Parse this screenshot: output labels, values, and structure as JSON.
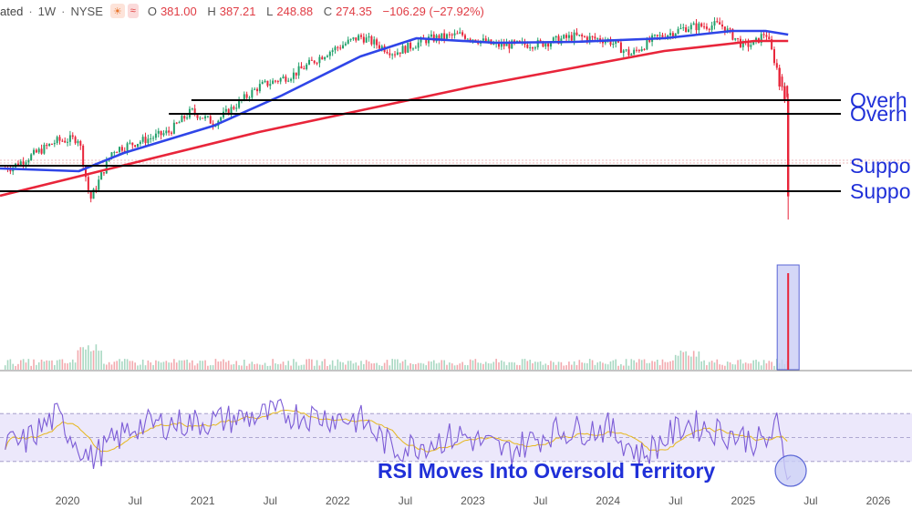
{
  "header": {
    "symbol_fragment": "ated",
    "interval": "1W",
    "exchange": "NYSE",
    "sun_icon": "sun-icon",
    "wave_icon": "approx-icon",
    "ohlc": {
      "open_label": "O",
      "open": "381.00",
      "high_label": "H",
      "high": "387.21",
      "low_label": "L",
      "low": "248.88",
      "close_label": "C",
      "close": "274.35",
      "change": "−106.29 (−27.92%)"
    }
  },
  "colors": {
    "sma50": "#2f45e8",
    "sma200": "#e8253a",
    "up": "#22a06b",
    "down": "#e8253a",
    "rsi": "#7c5cd6",
    "rsi_ma": "#e6b71e",
    "level": "#000000",
    "annotation": "#2030d8",
    "highlight": "#c9cdf5"
  },
  "annotations": {
    "overhead_1": "Overh",
    "overhead_2": "Overh",
    "support_1": "Suppo",
    "support_2": "Suppo",
    "rsi_note": "RSI Moves Into Oversold Territory"
  },
  "chart_data": {
    "type": "candlestick",
    "xlim": [
      "2019-07",
      "2026-04"
    ],
    "x_ticks": [
      "2020",
      "Jul",
      "2021",
      "Jul",
      "2022",
      "Jul",
      "2023",
      "Jul",
      "2024",
      "Jul",
      "2025",
      "Jul",
      "2026"
    ],
    "ylim": [
      200,
      470
    ],
    "price_anchors": [
      {
        "x": "2019-08",
        "y": 306
      },
      {
        "x": "2019-12",
        "y": 335
      },
      {
        "x": "2020-02",
        "y": 338
      },
      {
        "x": "2020-03",
        "y": 270
      },
      {
        "x": "2020-05",
        "y": 325
      },
      {
        "x": "2020-10",
        "y": 345
      },
      {
        "x": "2020-12",
        "y": 368
      },
      {
        "x": "2021-02",
        "y": 355
      },
      {
        "x": "2021-06",
        "y": 395
      },
      {
        "x": "2021-09",
        "y": 408
      },
      {
        "x": "2021-12",
        "y": 432
      },
      {
        "x": "2022-03",
        "y": 450
      },
      {
        "x": "2022-06",
        "y": 432
      },
      {
        "x": "2022-09",
        "y": 447
      },
      {
        "x": "2022-12",
        "y": 452
      },
      {
        "x": "2023-03",
        "y": 440
      },
      {
        "x": "2023-07",
        "y": 442
      },
      {
        "x": "2023-10",
        "y": 450
      },
      {
        "x": "2024-01",
        "y": 446
      },
      {
        "x": "2024-03",
        "y": 430
      },
      {
        "x": "2024-05",
        "y": 447
      },
      {
        "x": "2024-08",
        "y": 460
      },
      {
        "x": "2024-11",
        "y": 463
      },
      {
        "x": "2025-01",
        "y": 440
      },
      {
        "x": "2025-02",
        "y": 442
      },
      {
        "x": "2025-03",
        "y": 455
      },
      {
        "x": "2025-04",
        "y": 415
      },
      {
        "x": "2025-05",
        "y": 381
      },
      {
        "x": "2025-05-15",
        "y": 274.35
      }
    ],
    "series": [
      {
        "name": "",
        "kind": "sma50",
        "values": [
          {
            "x": "2019-07",
            "y": 305
          },
          {
            "x": "2020-02",
            "y": 302
          },
          {
            "x": "2020-06",
            "y": 322
          },
          {
            "x": "2021-02",
            "y": 352
          },
          {
            "x": "2021-08",
            "y": 385
          },
          {
            "x": "2022-03",
            "y": 428
          },
          {
            "x": "2022-08",
            "y": 448
          },
          {
            "x": "2023-03",
            "y": 443
          },
          {
            "x": "2023-10",
            "y": 444
          },
          {
            "x": "2024-06",
            "y": 448
          },
          {
            "x": "2024-12",
            "y": 456
          },
          {
            "x": "2025-03",
            "y": 456
          },
          {
            "x": "2025-05",
            "y": 452
          }
        ]
      },
      {
        "name": "",
        "kind": "sma200",
        "values": [
          {
            "x": "2019-07",
            "y": 275
          },
          {
            "x": "2021-06",
            "y": 345
          },
          {
            "x": "2023-01",
            "y": 395
          },
          {
            "x": "2024-06",
            "y": 434
          },
          {
            "x": "2025-02",
            "y": 445
          },
          {
            "x": "2025-05",
            "y": 445
          }
        ]
      }
    ],
    "levels": [
      {
        "label": "Overh",
        "y": 380
      },
      {
        "label": "Overh",
        "y": 365
      },
      {
        "label": "Suppo",
        "y": 308
      },
      {
        "label": "Suppo",
        "y": 280
      }
    ],
    "volume": {
      "spike_x": "2025-05",
      "spike_relative": 1.0,
      "baseline_relative": 0.14
    },
    "rsi": {
      "ylim": [
        0,
        100
      ],
      "guides": [
        70,
        50,
        30
      ],
      "anchors": [
        {
          "x": "2019-09",
          "y": 45
        },
        {
          "x": "2019-12",
          "y": 68
        },
        {
          "x": "2020-03",
          "y": 32
        },
        {
          "x": "2020-07",
          "y": 60
        },
        {
          "x": "2021-01",
          "y": 63
        },
        {
          "x": "2021-08",
          "y": 70
        },
        {
          "x": "2022-03",
          "y": 65
        },
        {
          "x": "2022-06",
          "y": 40
        },
        {
          "x": "2022-12",
          "y": 52
        },
        {
          "x": "2023-04",
          "y": 38
        },
        {
          "x": "2023-08",
          "y": 55
        },
        {
          "x": "2024-01",
          "y": 58
        },
        {
          "x": "2024-04",
          "y": 35
        },
        {
          "x": "2024-08",
          "y": 62
        },
        {
          "x": "2025-01",
          "y": 50
        },
        {
          "x": "2025-03",
          "y": 45
        },
        {
          "x": "2025-04",
          "y": 60
        },
        {
          "x": "2025-05",
          "y": 18
        }
      ]
    }
  }
}
